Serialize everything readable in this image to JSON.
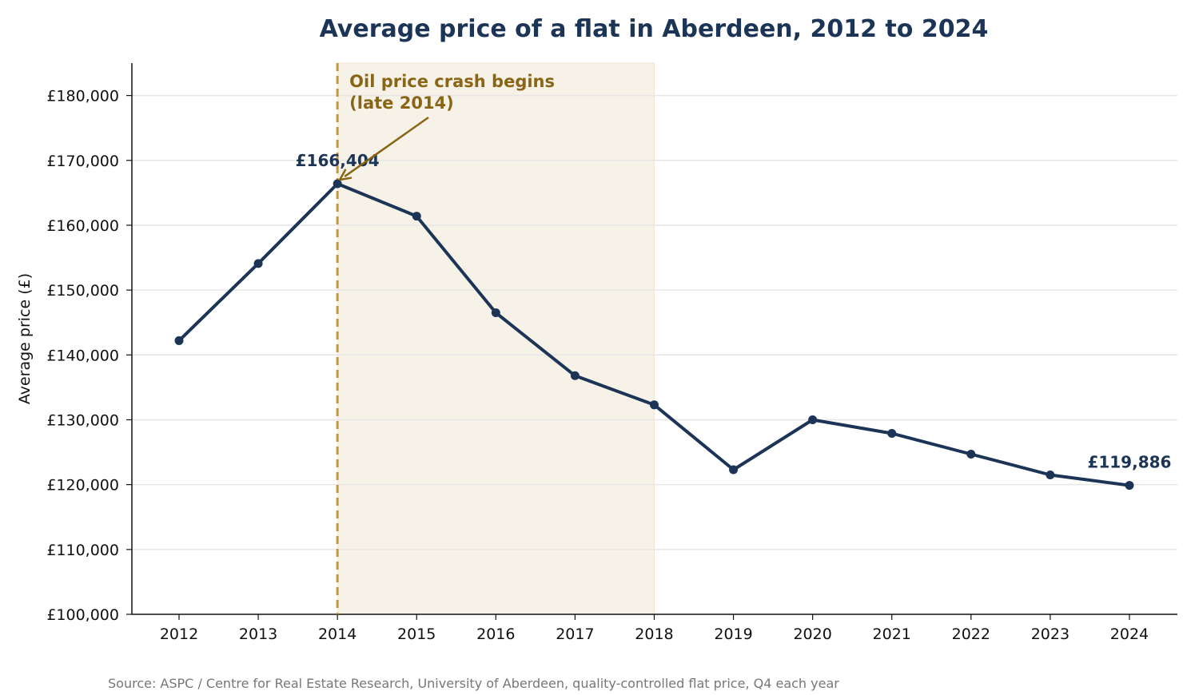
{
  "chart_data": {
    "type": "line",
    "title": "Average price of a flat in Aberdeen, 2012 to 2024",
    "ylabel": "Average price (£)",
    "xlabel": "",
    "x": [
      2012,
      2013,
      2014,
      2015,
      2016,
      2017,
      2018,
      2019,
      2020,
      2021,
      2022,
      2023,
      2024
    ],
    "series": [
      {
        "values": [
          142200,
          154100,
          166404,
          161400,
          146500,
          136800,
          132300,
          122300,
          130000,
          127900,
          124700,
          121500,
          119886
        ]
      }
    ],
    "ylim": [
      100000,
      185000
    ],
    "yticks": [
      100000,
      110000,
      120000,
      130000,
      140000,
      150000,
      160000,
      170000,
      180000
    ],
    "ytick_labels": [
      "£100,000",
      "£110,000",
      "£120,000",
      "£130,000",
      "£140,000",
      "£150,000",
      "£160,000",
      "£170,000",
      "£180,000"
    ],
    "xtick_labels": [
      "2012",
      "2013",
      "2014",
      "2015",
      "2016",
      "2017",
      "2018",
      "2019",
      "2020",
      "2021",
      "2022",
      "2023",
      "2024"
    ],
    "grid": "horizontal",
    "shaded_region": {
      "x_start": 2014,
      "x_end": 2018
    },
    "vertical_line_x": 2014,
    "data_labels": [
      {
        "x": 2014,
        "text": "£166,404"
      },
      {
        "x": 2024,
        "text": "£119,886"
      }
    ],
    "annotation": {
      "line1": "Oil price crash begins",
      "line2": "(late 2014)",
      "points_to_x": 2014
    },
    "colors": {
      "line": "#1c3557",
      "annotation": "#8a6516",
      "vline": "#c9973a",
      "shade": "#f6f2e8",
      "grid": "#e6e6e6"
    }
  },
  "source": "Source: ASPC / Centre for Real Estate Research, University of Aberdeen, quality-controlled flat price, Q4 each year"
}
